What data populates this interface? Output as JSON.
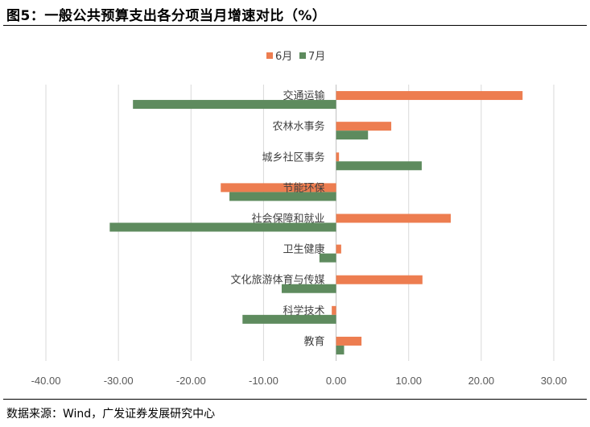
{
  "title": "图5：一般公共预算支出各分项当月增速对比（%）",
  "source": "数据来源：Wind，广发证券发展研究中心",
  "colors": {
    "series_6": "#ED7D50",
    "series_7": "#5E8B5E",
    "grid": "#D9D9D9",
    "axis_text": "#595959"
  },
  "chart_data": {
    "type": "bar",
    "orientation": "horizontal",
    "categories": [
      "交通运输",
      "农林水事务",
      "城乡社区事务",
      "节能环保",
      "社会保障和就业",
      "卫生健康",
      "文化旅游体育与传媒",
      "科学技术",
      "教育"
    ],
    "series": [
      {
        "name": "6月",
        "values": [
          25.7,
          7.6,
          0.4,
          -15.9,
          15.8,
          0.7,
          11.9,
          -0.6,
          3.5
        ]
      },
      {
        "name": "7月",
        "values": [
          -28.0,
          4.4,
          11.8,
          -14.7,
          -31.2,
          -2.3,
          -7.5,
          -12.9,
          1.1
        ]
      }
    ],
    "xlim": [
      -40,
      30
    ],
    "xticks": [
      "-40.00",
      "-30.00",
      "-20.00",
      "-10.00",
      "0.00",
      "10.00",
      "20.00",
      "30.00"
    ],
    "grid": true,
    "legend": "top-center"
  }
}
